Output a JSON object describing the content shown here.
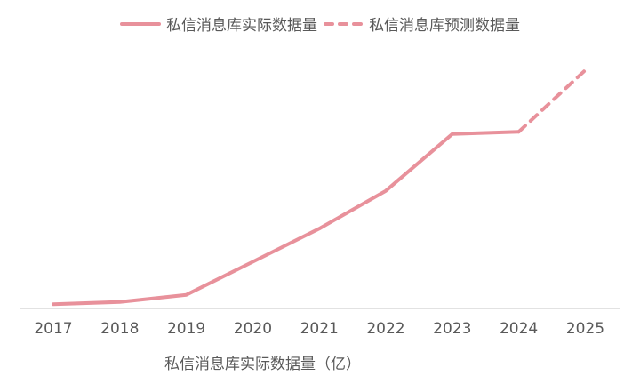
{
  "chart_data": {
    "type": "line",
    "title": "",
    "xlabel": "私信消息库实际数据量（亿）",
    "ylabel": "",
    "categories": [
      "2017",
      "2018",
      "2019",
      "2020",
      "2021",
      "2022",
      "2023",
      "2024",
      "2025"
    ],
    "series": [
      {
        "name": "私信消息库实际数据量",
        "style": "solid",
        "values": [
          1,
          2,
          5,
          19,
          33,
          49,
          73,
          74,
          null
        ]
      },
      {
        "name": "私信消息库预测数据量",
        "style": "dashed",
        "values": [
          null,
          null,
          null,
          null,
          null,
          null,
          null,
          74,
          100
        ]
      }
    ],
    "ylim": [
      0,
      100
    ],
    "y_units_note": "relative scale (no y-axis ticks shown)",
    "grid": false,
    "legend_position": "top",
    "colors": {
      "line": "#e8919b",
      "axis": "#d9d9d9",
      "text": "#595959"
    }
  },
  "legend": {
    "actual": "私信消息库实际数据量",
    "forecast": "私信消息库预测数据量"
  },
  "axis": {
    "xlabel": "私信消息库实际数据量（亿）",
    "ticks": [
      "2017",
      "2018",
      "2019",
      "2020",
      "2021",
      "2022",
      "2023",
      "2024",
      "2025"
    ]
  }
}
